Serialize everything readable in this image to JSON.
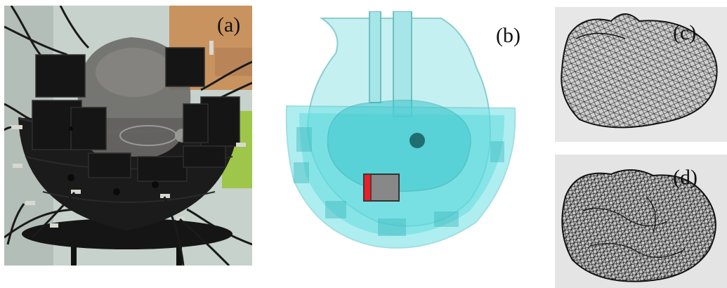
{
  "figure": {
    "panels": [
      {
        "id": "a",
        "label": "(a)"
      },
      {
        "id": "b",
        "label": "(b)"
      },
      {
        "id": "c",
        "label": "(c)"
      },
      {
        "id": "d",
        "label": "(d)"
      }
    ]
  },
  "colors": {
    "wall": "#c8d5cf",
    "wood": "#c9935f",
    "helmet_black": "#1b1b1b",
    "head_translucent": "#6d6c6a",
    "cyan_fill": "#40d7dc",
    "cyan_edge": "#4fb7bd",
    "electrode_red": "#e8202a",
    "electrode_gray": "#888888",
    "mesh_line": "#111111",
    "mesh_bg": "#e6e6e6"
  }
}
